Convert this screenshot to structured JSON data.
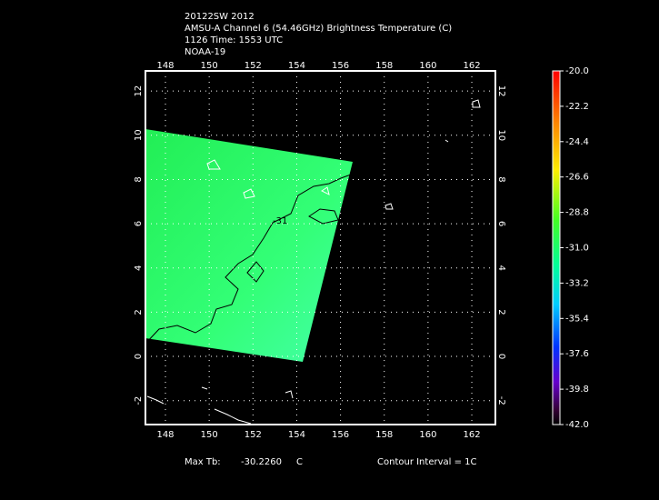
{
  "header": {
    "lines": [
      "20122SW 2012",
      "AMSU-A Channel 6 (54.46GHz) Brightness Temperature (C)",
      "1126 Time: 1553 UTC",
      "NOAA-19"
    ]
  },
  "map": {
    "x_ticks": [
      "148",
      "150",
      "152",
      "154",
      "156",
      "158",
      "160",
      "162"
    ],
    "y_ticks": [
      "-2",
      "0",
      "2",
      "4",
      "6",
      "8",
      "10",
      "12"
    ],
    "contour_label": "-31"
  },
  "colorbar": {
    "labels": [
      "-20.0",
      "-22.2",
      "-24.4",
      "-26.6",
      "-28.8",
      "-31.0",
      "-33.2",
      "-35.4",
      "-37.6",
      "-39.8",
      "-42.0"
    ]
  },
  "footer": {
    "max_tb_label": "Max Tb:",
    "max_tb_value": "-30.2260",
    "max_tb_unit": "C",
    "contour_interval": "Contour Interval = 1C"
  }
}
